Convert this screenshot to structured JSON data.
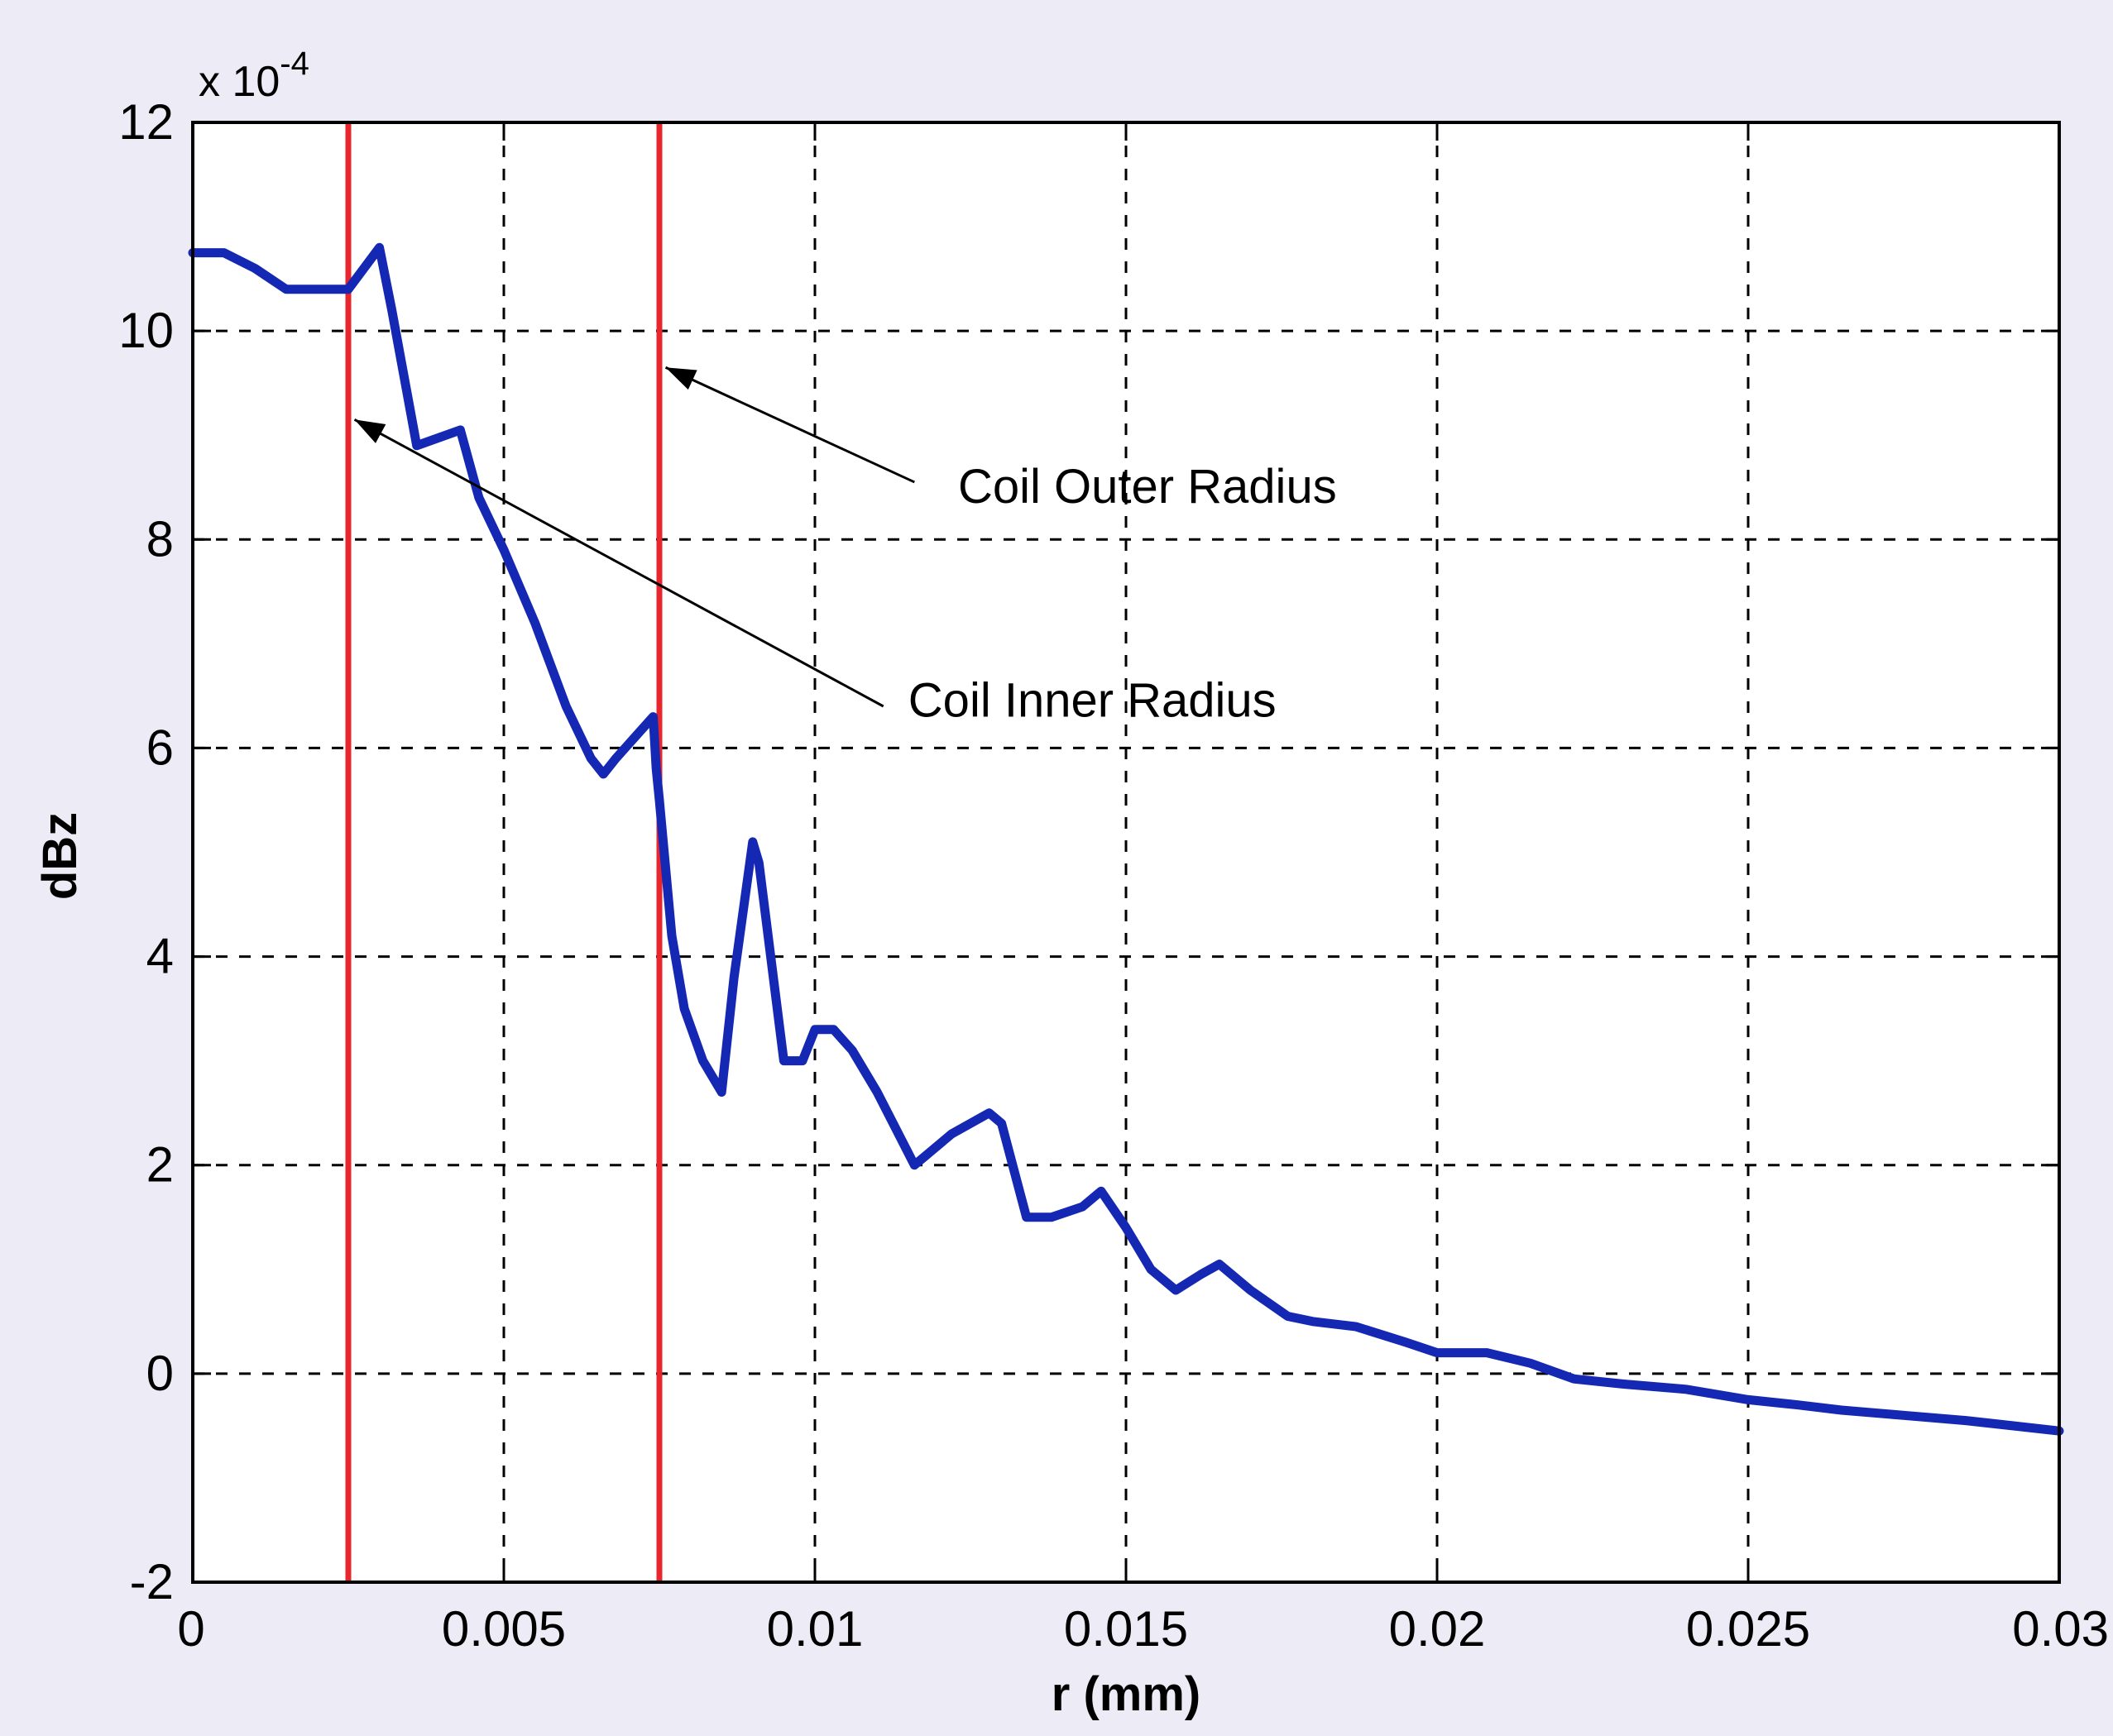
{
  "chart_data": {
    "type": "line",
    "xlabel": "r (mm)",
    "ylabel": "dBz",
    "y_multiplier": "x 10",
    "y_multiplier_exponent": "-4",
    "xlim": [
      0,
      0.03
    ],
    "ylim": [
      -2,
      12
    ],
    "grid": true,
    "x_ticks": [
      {
        "value": 0,
        "label": "0"
      },
      {
        "value": 0.005,
        "label": "0.005"
      },
      {
        "value": 0.01,
        "label": "0.01"
      },
      {
        "value": 0.015,
        "label": "0.015"
      },
      {
        "value": 0.02,
        "label": "0.02"
      },
      {
        "value": 0.025,
        "label": "0.025"
      },
      {
        "value": 0.03,
        "label": "0.03"
      }
    ],
    "y_ticks": [
      {
        "value": -2,
        "label": "-2"
      },
      {
        "value": 0,
        "label": "0"
      },
      {
        "value": 2,
        "label": "2"
      },
      {
        "value": 4,
        "label": "4"
      },
      {
        "value": 6,
        "label": "6"
      },
      {
        "value": 8,
        "label": "8"
      },
      {
        "value": 10,
        "label": "10"
      },
      {
        "value": 12,
        "label": "12"
      }
    ],
    "series": [
      {
        "color": "#1428b4",
        "x": [
          0,
          0.0005,
          0.001,
          0.0015,
          0.002,
          0.0025,
          0.003,
          0.0032,
          0.0036,
          0.0043,
          0.0046,
          0.005,
          0.0055,
          0.006,
          0.0064,
          0.0066,
          0.0068,
          0.0071,
          0.0074,
          0.00745,
          0.0075,
          0.0077,
          0.0079,
          0.0082,
          0.0085,
          0.0087,
          0.009,
          0.0091,
          0.0095,
          0.0098,
          0.01,
          0.0103,
          0.0106,
          0.011,
          0.0116,
          0.0118,
          0.0122,
          0.0128,
          0.013,
          0.0134,
          0.0138,
          0.0143,
          0.0146,
          0.015,
          0.0154,
          0.0158,
          0.0162,
          0.0165,
          0.017,
          0.0176,
          0.018,
          0.0187,
          0.0195,
          0.02,
          0.0208,
          0.0215,
          0.0222,
          0.023,
          0.024,
          0.025,
          0.0258,
          0.0265,
          0.0275,
          0.0285,
          0.03
        ],
        "y": [
          10.75,
          10.75,
          10.6,
          10.4,
          10.4,
          10.4,
          10.8,
          10.2,
          8.9,
          9.05,
          8.4,
          7.9,
          7.2,
          6.4,
          5.9,
          5.75,
          5.9,
          6.1,
          6.3,
          5.8,
          5.5,
          4.2,
          3.5,
          3.0,
          2.7,
          3.8,
          5.1,
          4.9,
          3.0,
          3.0,
          3.3,
          3.3,
          3.1,
          2.7,
          2.0,
          2.1,
          2.3,
          2.5,
          2.4,
          1.5,
          1.5,
          1.6,
          1.75,
          1.4,
          1.0,
          0.8,
          0.95,
          1.05,
          0.8,
          0.55,
          0.5,
          0.45,
          0.3,
          0.2,
          0.2,
          0.1,
          -0.05,
          -0.1,
          -0.15,
          -0.25,
          -0.3,
          -0.35,
          -0.4,
          -0.45,
          -0.55
        ]
      }
    ],
    "vertical_lines": [
      {
        "x": 0.0025,
        "color": "#e8262e"
      },
      {
        "x": 0.0075,
        "color": "#e8262e"
      }
    ],
    "annotations": [
      {
        "text": "Coil Outer Radius",
        "text_x": 0.0123,
        "text_y": 8.35,
        "arrow_from_x": 0.0116,
        "arrow_from_y": 8.55,
        "arrow_to_x": 0.0076,
        "arrow_to_y": 9.65
      },
      {
        "text": "Coil Inner Radius",
        "text_x": 0.0115,
        "text_y": 6.3,
        "arrow_from_x": 0.0111,
        "arrow_from_y": 6.4,
        "arrow_to_x": 0.0026,
        "arrow_to_y": 9.15
      }
    ]
  }
}
